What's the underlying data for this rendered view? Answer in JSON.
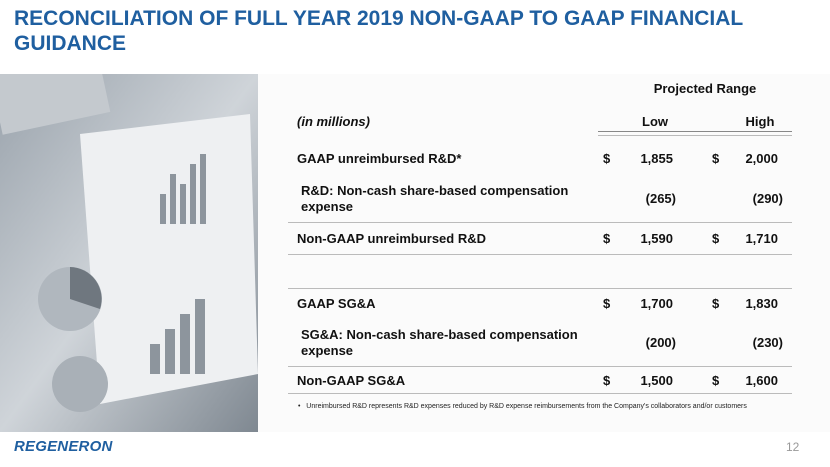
{
  "header": {
    "title": "RECONCILIATION OF FULL YEAR 2019 NON-GAAP TO GAAP FINANCIAL GUIDANCE"
  },
  "table": {
    "group_header": "Projected Range",
    "columns": [
      "(in millions)",
      "Low",
      "High"
    ],
    "rows": [
      {
        "label": "GAAP unreimbursed R&D*",
        "low_symbol": "$",
        "low": "1,855",
        "high_symbol": "$",
        "high": "2,000"
      },
      {
        "label": "R&D: Non-cash share-based compensation expense",
        "low": "(265)",
        "high": "(290)"
      },
      {
        "label": "Non-GAAP unreimbursed R&D",
        "low_symbol": "$",
        "low": "1,590",
        "high_symbol": "$",
        "high": "1,710"
      },
      {
        "label": "GAAP SG&A",
        "low_symbol": "$",
        "low": "1,700",
        "high_symbol": "$",
        "high": "1,830"
      },
      {
        "label": "SG&A: Non-cash share-based compensation expense",
        "low": "(200)",
        "high": "(230)"
      },
      {
        "label": "Non-GAAP SG&A",
        "low_symbol": "$",
        "low": "1,500",
        "high_symbol": "$",
        "high": "1,600"
      }
    ]
  },
  "footnote": "Unreimbursed R&D represents R&D expenses reduced by R&D expense reimbursements from the Company's collaborators and/or customers",
  "footer": {
    "logo": "REGENERON",
    "page_number": "12"
  }
}
